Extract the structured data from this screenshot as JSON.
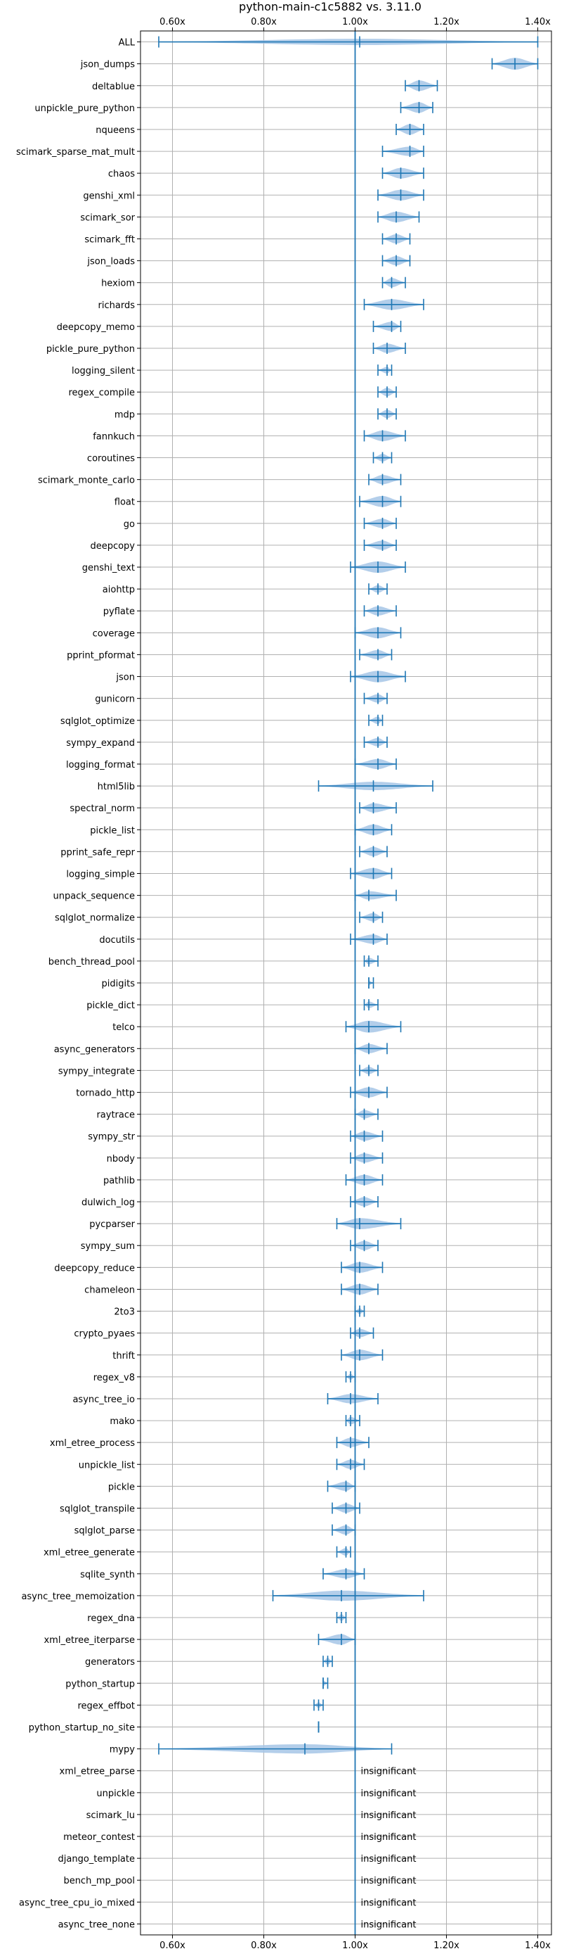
{
  "chart_data": {
    "type": "violin",
    "title": "python-main-c1c5882 vs. 3.11.0",
    "xlabel": "",
    "ylabel": "",
    "xlim": [
      0.53,
      1.43
    ],
    "xticks": [
      0.6,
      0.8,
      1.0,
      1.2,
      1.4
    ],
    "xtick_labels": [
      "0.60x",
      "0.80x",
      "1.00x",
      "1.20x",
      "1.40x"
    ],
    "reference_line": 1.0,
    "grid": true,
    "colors": {
      "violin": "#a6c6e6",
      "line": "#1f77b4",
      "grid": "#b0b0b0"
    },
    "note_text": "insignificant",
    "benchmarks": [
      {
        "name": "ALL",
        "center": 1.01,
        "min": 0.57,
        "max": 1.4,
        "width": 1.5
      },
      {
        "name": "json_dumps",
        "center": 1.35,
        "min": 1.3,
        "max": 1.4,
        "width": 2.8
      },
      {
        "name": "deltablue",
        "center": 1.14,
        "min": 1.11,
        "max": 1.18,
        "width": 2.5
      },
      {
        "name": "unpickle_pure_python",
        "center": 1.14,
        "min": 1.1,
        "max": 1.17,
        "width": 2.5
      },
      {
        "name": "nqueens",
        "center": 1.12,
        "min": 1.09,
        "max": 1.15,
        "width": 2.5
      },
      {
        "name": "scimark_sparse_mat_mult",
        "center": 1.12,
        "min": 1.06,
        "max": 1.15,
        "width": 2.2
      },
      {
        "name": "chaos",
        "center": 1.1,
        "min": 1.06,
        "max": 1.15,
        "width": 2.5
      },
      {
        "name": "genshi_xml",
        "center": 1.1,
        "min": 1.05,
        "max": 1.15,
        "width": 2.5
      },
      {
        "name": "scimark_sor",
        "center": 1.09,
        "min": 1.05,
        "max": 1.14,
        "width": 2.5
      },
      {
        "name": "scimark_fft",
        "center": 1.09,
        "min": 1.06,
        "max": 1.12,
        "width": 2.2
      },
      {
        "name": "json_loads",
        "center": 1.09,
        "min": 1.06,
        "max": 1.12,
        "width": 2.2
      },
      {
        "name": "hexiom",
        "center": 1.08,
        "min": 1.06,
        "max": 1.11,
        "width": 2.2
      },
      {
        "name": "richards",
        "center": 1.08,
        "min": 1.02,
        "max": 1.15,
        "width": 2.5
      },
      {
        "name": "deepcopy_memo",
        "center": 1.08,
        "min": 1.04,
        "max": 1.1,
        "width": 2.2
      },
      {
        "name": "pickle_pure_python",
        "center": 1.07,
        "min": 1.04,
        "max": 1.11,
        "width": 2.2
      },
      {
        "name": "logging_silent",
        "center": 1.07,
        "min": 1.05,
        "max": 1.08,
        "width": 1.6
      },
      {
        "name": "regex_compile",
        "center": 1.07,
        "min": 1.05,
        "max": 1.09,
        "width": 2.0
      },
      {
        "name": "mdp",
        "center": 1.07,
        "min": 1.05,
        "max": 1.09,
        "width": 2.0
      },
      {
        "name": "fannkuch",
        "center": 1.06,
        "min": 1.02,
        "max": 1.11,
        "width": 2.5
      },
      {
        "name": "coroutines",
        "center": 1.06,
        "min": 1.04,
        "max": 1.08,
        "width": 1.8
      },
      {
        "name": "scimark_monte_carlo",
        "center": 1.06,
        "min": 1.03,
        "max": 1.1,
        "width": 2.2
      },
      {
        "name": "float",
        "center": 1.06,
        "min": 1.01,
        "max": 1.1,
        "width": 2.6
      },
      {
        "name": "go",
        "center": 1.06,
        "min": 1.02,
        "max": 1.09,
        "width": 2.2
      },
      {
        "name": "deepcopy",
        "center": 1.06,
        "min": 1.02,
        "max": 1.09,
        "width": 2.2
      },
      {
        "name": "genshi_text",
        "center": 1.05,
        "min": 0.99,
        "max": 1.11,
        "width": 2.7
      },
      {
        "name": "aiohttp",
        "center": 1.05,
        "min": 1.03,
        "max": 1.07,
        "width": 1.8
      },
      {
        "name": "pyflate",
        "center": 1.05,
        "min": 1.02,
        "max": 1.09,
        "width": 2.2
      },
      {
        "name": "coverage",
        "center": 1.05,
        "min": 1.0,
        "max": 1.1,
        "width": 2.6
      },
      {
        "name": "pprint_pformat",
        "center": 1.05,
        "min": 1.01,
        "max": 1.08,
        "width": 2.2
      },
      {
        "name": "json",
        "center": 1.05,
        "min": 0.99,
        "max": 1.11,
        "width": 2.7
      },
      {
        "name": "gunicorn",
        "center": 1.05,
        "min": 1.02,
        "max": 1.07,
        "width": 2.0
      },
      {
        "name": "sqlglot_optimize",
        "center": 1.05,
        "min": 1.03,
        "max": 1.06,
        "width": 1.8
      },
      {
        "name": "sympy_expand",
        "center": 1.05,
        "min": 1.02,
        "max": 1.07,
        "width": 2.0
      },
      {
        "name": "logging_format",
        "center": 1.05,
        "min": 1.0,
        "max": 1.09,
        "width": 2.4
      },
      {
        "name": "html5lib",
        "center": 1.04,
        "min": 0.92,
        "max": 1.17,
        "width": 2.0
      },
      {
        "name": "spectral_norm",
        "center": 1.04,
        "min": 1.01,
        "max": 1.09,
        "width": 2.2
      },
      {
        "name": "pickle_list",
        "center": 1.04,
        "min": 1.0,
        "max": 1.08,
        "width": 2.5
      },
      {
        "name": "pprint_safe_repr",
        "center": 1.04,
        "min": 1.01,
        "max": 1.07,
        "width": 2.2
      },
      {
        "name": "logging_simple",
        "center": 1.04,
        "min": 0.99,
        "max": 1.08,
        "width": 2.6
      },
      {
        "name": "unpack_sequence",
        "center": 1.03,
        "min": 1.0,
        "max": 1.09,
        "width": 2.0
      },
      {
        "name": "sqlglot_normalize",
        "center": 1.04,
        "min": 1.01,
        "max": 1.06,
        "width": 2.0
      },
      {
        "name": "docutils",
        "center": 1.04,
        "min": 0.99,
        "max": 1.07,
        "width": 2.2
      },
      {
        "name": "bench_thread_pool",
        "center": 1.03,
        "min": 1.02,
        "max": 1.05,
        "width": 1.6
      },
      {
        "name": "pidigits",
        "center": 1.03,
        "min": 1.03,
        "max": 1.04,
        "width": 1.2
      },
      {
        "name": "pickle_dict",
        "center": 1.03,
        "min": 1.02,
        "max": 1.05,
        "width": 1.6
      },
      {
        "name": "telco",
        "center": 1.03,
        "min": 0.98,
        "max": 1.1,
        "width": 2.8
      },
      {
        "name": "async_generators",
        "center": 1.03,
        "min": 1.0,
        "max": 1.07,
        "width": 2.2
      },
      {
        "name": "sympy_integrate",
        "center": 1.03,
        "min": 1.01,
        "max": 1.05,
        "width": 1.8
      },
      {
        "name": "tornado_http",
        "center": 1.03,
        "min": 0.99,
        "max": 1.07,
        "width": 2.4
      },
      {
        "name": "raytrace",
        "center": 1.02,
        "min": 1.0,
        "max": 1.05,
        "width": 2.0
      },
      {
        "name": "sympy_str",
        "center": 1.02,
        "min": 0.99,
        "max": 1.06,
        "width": 2.2
      },
      {
        "name": "nbody",
        "center": 1.02,
        "min": 0.99,
        "max": 1.06,
        "width": 2.2
      },
      {
        "name": "pathlib",
        "center": 1.02,
        "min": 0.98,
        "max": 1.06,
        "width": 2.4
      },
      {
        "name": "dulwich_log",
        "center": 1.02,
        "min": 0.99,
        "max": 1.05,
        "width": 2.2
      },
      {
        "name": "pycparser",
        "center": 1.01,
        "min": 0.96,
        "max": 1.1,
        "width": 2.6
      },
      {
        "name": "sympy_sum",
        "center": 1.02,
        "min": 0.99,
        "max": 1.05,
        "width": 2.2
      },
      {
        "name": "deepcopy_reduce",
        "center": 1.01,
        "min": 0.97,
        "max": 1.06,
        "width": 2.5
      },
      {
        "name": "chameleon",
        "center": 1.01,
        "min": 0.97,
        "max": 1.05,
        "width": 2.5
      },
      {
        "name": "2to3",
        "center": 1.01,
        "min": 1.0,
        "max": 1.02,
        "width": 1.4
      },
      {
        "name": "crypto_pyaes",
        "center": 1.01,
        "min": 0.99,
        "max": 1.04,
        "width": 2.0
      },
      {
        "name": "thrift",
        "center": 1.01,
        "min": 0.97,
        "max": 1.06,
        "width": 2.5
      },
      {
        "name": "regex_v8",
        "center": 0.99,
        "min": 0.98,
        "max": 1.0,
        "width": 1.4
      },
      {
        "name": "async_tree_io",
        "center": 0.99,
        "min": 0.94,
        "max": 1.05,
        "width": 2.2
      },
      {
        "name": "mako",
        "center": 0.99,
        "min": 0.98,
        "max": 1.01,
        "width": 1.8
      },
      {
        "name": "xml_etree_process",
        "center": 0.99,
        "min": 0.96,
        "max": 1.03,
        "width": 2.2
      },
      {
        "name": "unpickle_list",
        "center": 0.99,
        "min": 0.96,
        "max": 1.02,
        "width": 2.2
      },
      {
        "name": "pickle",
        "center": 0.98,
        "min": 0.94,
        "max": 1.0,
        "width": 2.2
      },
      {
        "name": "sqlglot_transpile",
        "center": 0.98,
        "min": 0.95,
        "max": 1.01,
        "width": 2.2
      },
      {
        "name": "sqlglot_parse",
        "center": 0.98,
        "min": 0.95,
        "max": 1.0,
        "width": 2.2
      },
      {
        "name": "xml_etree_generate",
        "center": 0.98,
        "min": 0.96,
        "max": 0.99,
        "width": 1.8
      },
      {
        "name": "sqlite_synth",
        "center": 0.98,
        "min": 0.93,
        "max": 1.02,
        "width": 2.2
      },
      {
        "name": "async_tree_memoization",
        "center": 0.97,
        "min": 0.82,
        "max": 1.15,
        "width": 2.4
      },
      {
        "name": "regex_dna",
        "center": 0.97,
        "min": 0.96,
        "max": 0.98,
        "width": 1.6
      },
      {
        "name": "xml_etree_iterparse",
        "center": 0.97,
        "min": 0.92,
        "max": 1.0,
        "width": 2.5
      },
      {
        "name": "generators",
        "center": 0.94,
        "min": 0.93,
        "max": 0.95,
        "width": 1.6
      },
      {
        "name": "python_startup",
        "center": 0.93,
        "min": 0.93,
        "max": 0.94,
        "width": 1.3
      },
      {
        "name": "regex_effbot",
        "center": 0.92,
        "min": 0.91,
        "max": 0.93,
        "width": 1.3
      },
      {
        "name": "python_startup_no_site",
        "center": 0.92,
        "min": 0.92,
        "max": 0.92,
        "width": 1.2
      },
      {
        "name": "mypy",
        "center": 0.89,
        "min": 0.57,
        "max": 1.08,
        "width": 2.2
      },
      {
        "name": "xml_etree_parse",
        "insignificant": true
      },
      {
        "name": "unpickle",
        "insignificant": true
      },
      {
        "name": "scimark_lu",
        "insignificant": true
      },
      {
        "name": "meteor_contest",
        "insignificant": true
      },
      {
        "name": "django_template",
        "insignificant": true
      },
      {
        "name": "bench_mp_pool",
        "insignificant": true
      },
      {
        "name": "async_tree_cpu_io_mixed",
        "insignificant": true
      },
      {
        "name": "async_tree_none",
        "insignificant": true
      }
    ]
  }
}
